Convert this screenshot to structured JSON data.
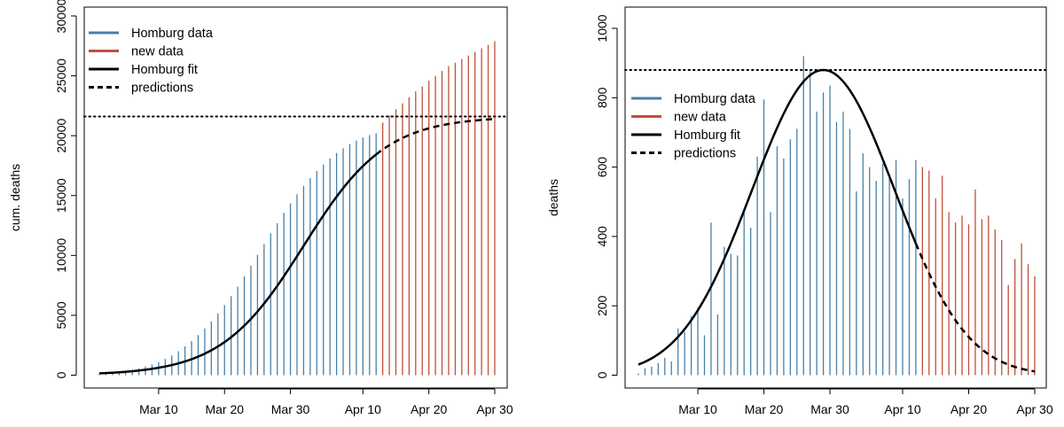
{
  "colors": {
    "homburg_data": "#4a7fa8",
    "new_data": "#c0503a",
    "fit": "#000000",
    "prediction": "#000000",
    "plateau": "#000000"
  },
  "chart_data": [
    {
      "type": "bar",
      "ylabel": "cum. deaths",
      "ylim": [
        0,
        30000
      ],
      "yticks": [
        0,
        5000,
        10000,
        15000,
        20000,
        25000,
        30000
      ],
      "xticks": [
        "Mar 10",
        "Mar 20",
        "Mar 30",
        "Apr 10",
        "Apr 20",
        "Apr 30"
      ],
      "xtick_days": [
        40,
        50,
        60,
        71,
        81,
        91
      ],
      "x_range_days": [
        31,
        91
      ],
      "legend": [
        "Homburg data",
        "new data",
        "Homburg fit",
        "predictions"
      ],
      "legend_position": "top-left",
      "plateau": 21600,
      "fit": {
        "type": "logistic",
        "K": 21600,
        "midpoint_day": 62,
        "rate": 0.16,
        "fit_days": [
          31,
          73
        ],
        "prediction_days": [
          73,
          91
        ]
      },
      "series": [
        {
          "name": "Homburg data",
          "x_days": [
            31,
            32,
            33,
            34,
            35,
            36,
            37,
            38,
            39,
            40,
            41,
            42,
            43,
            44,
            45,
            46,
            47,
            48,
            49,
            50,
            51,
            52,
            53,
            54,
            55,
            56,
            57,
            58,
            59,
            60,
            61,
            62,
            63,
            64,
            65,
            66,
            67,
            68,
            69,
            70,
            71,
            72,
            73
          ],
          "values": [
            110,
            150,
            200,
            270,
            350,
            450,
            570,
            720,
            900,
            1100,
            1350,
            1650,
            2000,
            2400,
            2850,
            3350,
            3900,
            4500,
            5150,
            5850,
            6600,
            7400,
            8250,
            9150,
            10050,
            10950,
            11850,
            12700,
            13550,
            14350,
            15100,
            15800,
            16450,
            17050,
            17600,
            18100,
            18550,
            18950,
            19300,
            19600,
            19850,
            20050,
            20200
          ]
        },
        {
          "name": "new data",
          "x_days": [
            74,
            75,
            76,
            77,
            78,
            79,
            80,
            81,
            82,
            83,
            84,
            85,
            86,
            87,
            88,
            89,
            90,
            91
          ],
          "values": [
            21100,
            21700,
            22200,
            22700,
            23200,
            23700,
            24100,
            24600,
            25000,
            25400,
            25800,
            26100,
            26400,
            26700,
            27000,
            27300,
            27600,
            27900
          ]
        }
      ]
    },
    {
      "type": "bar",
      "ylabel": "deaths",
      "ylim": [
        0,
        1000
      ],
      "yticks": [
        0,
        200,
        400,
        600,
        800,
        1000
      ],
      "xticks": [
        "Mar 10",
        "Mar 20",
        "Mar 30",
        "Apr 10",
        "Apr 20",
        "Apr 30"
      ],
      "xtick_days": [
        40,
        50,
        60,
        71,
        81,
        91
      ],
      "x_range_days": [
        31,
        91
      ],
      "legend": [
        "Homburg data",
        "new data",
        "Homburg fit",
        "predictions"
      ],
      "legend_position": "top-left",
      "plateau": 880,
      "fit": {
        "type": "gaussian",
        "peak": 880,
        "peak_day": 59,
        "sigma": 10.8,
        "fit_days": [
          31,
          73
        ],
        "prediction_days": [
          73,
          91
        ]
      },
      "series": [
        {
          "name": "Homburg data",
          "x_days": [
            31,
            32,
            33,
            34,
            35,
            36,
            37,
            38,
            39,
            40,
            41,
            42,
            43,
            44,
            45,
            46,
            47,
            48,
            49,
            50,
            51,
            52,
            53,
            54,
            55,
            56,
            57,
            58,
            59,
            60,
            61,
            62,
            63,
            64,
            65,
            66,
            67,
            68,
            69,
            70,
            71,
            72,
            73
          ],
          "values": [
            5,
            20,
            25,
            35,
            50,
            40,
            135,
            125,
            170,
            195,
            115,
            440,
            175,
            370,
            350,
            345,
            475,
            425,
            630,
            795,
            470,
            660,
            625,
            680,
            710,
            920,
            880,
            760,
            815,
            835,
            730,
            760,
            710,
            530,
            640,
            600,
            560,
            610,
            575,
            620,
            510,
            565,
            620
          ]
        },
        {
          "name": "new data",
          "x_days": [
            74,
            75,
            76,
            77,
            78,
            79,
            80,
            81,
            82,
            83,
            84,
            85,
            86,
            87,
            88,
            89,
            90,
            91
          ],
          "values": [
            600,
            590,
            510,
            575,
            470,
            440,
            460,
            435,
            535,
            450,
            460,
            420,
            390,
            260,
            335,
            380,
            320,
            285
          ]
        }
      ]
    }
  ]
}
